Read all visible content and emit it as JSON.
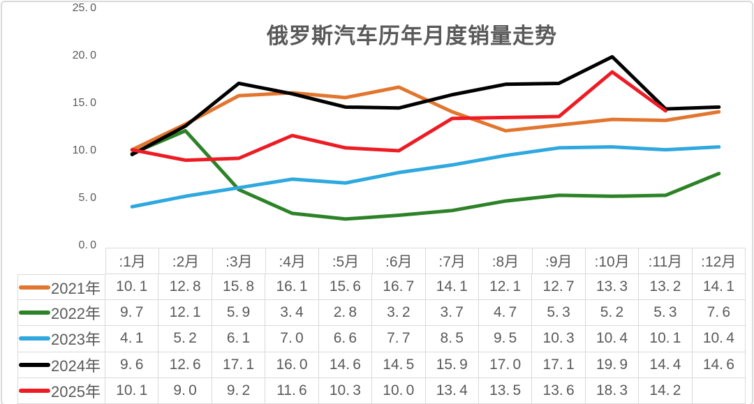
{
  "chart_data": {
    "type": "line",
    "title": "俄罗斯汽车历年月度销量走势",
    "xlabel": "",
    "ylabel": "",
    "ylim": [
      0,
      25
    ],
    "grid": false,
    "legend_position": "left-column-of-data-table",
    "data_table_shown": true,
    "y_tick_labels": [
      "25.0",
      "20.0",
      "15.0",
      "10.0",
      "5.0",
      "0.0"
    ],
    "categories": [
      ":1月",
      ":2月",
      ":3月",
      ":4月",
      ":5月",
      ":6月",
      ":7月",
      ":8月",
      ":9月",
      ":10月",
      ":11月",
      ":12月"
    ],
    "series": [
      {
        "name": "2021年",
        "color": "#e2762f",
        "values": [
          10.1,
          12.8,
          15.8,
          16.1,
          15.6,
          16.7,
          14.1,
          12.1,
          12.7,
          13.3,
          13.2,
          14.1
        ]
      },
      {
        "name": "2022年",
        "color": "#2d8228",
        "values": [
          9.7,
          12.1,
          5.9,
          3.4,
          2.8,
          3.2,
          3.7,
          4.7,
          5.3,
          5.2,
          5.3,
          7.6
        ]
      },
      {
        "name": "2023年",
        "color": "#2ea8df",
        "values": [
          4.1,
          5.2,
          6.1,
          7.0,
          6.6,
          7.7,
          8.5,
          9.5,
          10.3,
          10.4,
          10.1,
          10.4
        ]
      },
      {
        "name": "2024年",
        "color": "#000000",
        "values": [
          9.6,
          12.6,
          17.1,
          16.0,
          14.6,
          14.5,
          15.9,
          17.0,
          17.1,
          19.9,
          14.4,
          14.6
        ]
      },
      {
        "name": "2025年",
        "color": "#ed1c24",
        "values": [
          10.1,
          9.0,
          9.2,
          11.6,
          10.3,
          10.0,
          13.4,
          13.5,
          13.6,
          18.3,
          14.2,
          null
        ]
      }
    ],
    "colors": {
      "text": "#595959",
      "border": "#d9d9d9",
      "background": "#ffffff"
    }
  }
}
